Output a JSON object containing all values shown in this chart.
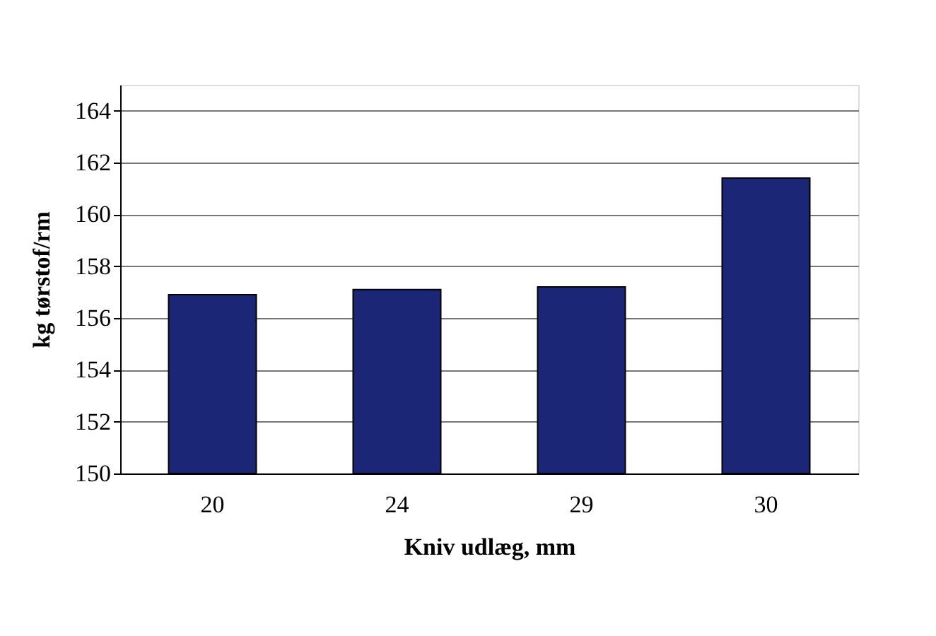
{
  "chart_data": {
    "type": "bar",
    "xlabel": "Kniv udlæg, mm",
    "ylabel": "kg tørstof/rm",
    "categories": [
      "20",
      "24",
      "29",
      "30"
    ],
    "values": [
      156.9,
      157.1,
      157.2,
      161.4
    ],
    "color": "#1c2677",
    "ylim": [
      150,
      165
    ],
    "yticks": [
      150,
      152,
      154,
      156,
      158,
      160,
      162,
      164
    ],
    "grid": "y"
  }
}
